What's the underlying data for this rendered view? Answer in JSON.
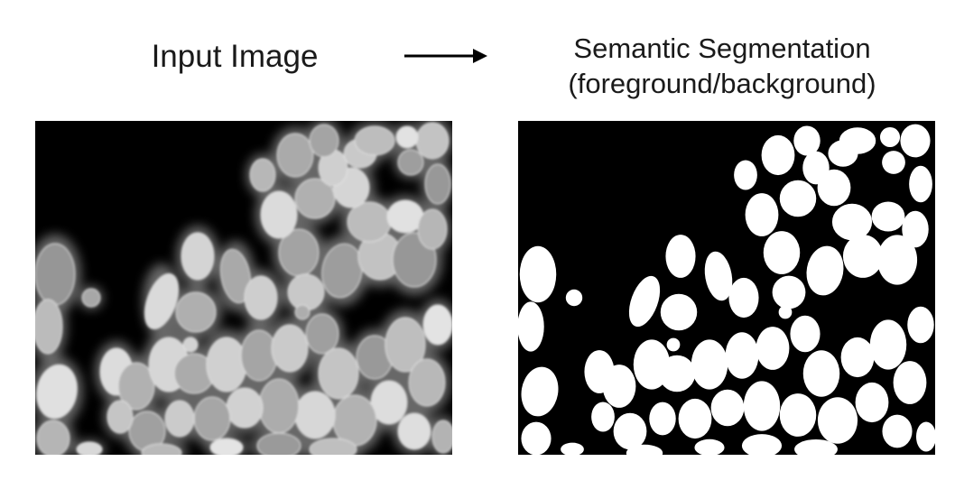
{
  "diagram": {
    "input_label": "Input Image",
    "output_label_line1": "Semantic Segmentation",
    "output_label_line2": "(foreground/background)",
    "arrow_icon": "right-arrow-icon",
    "input_panel": {
      "background": "#000000",
      "nuclei_fill": "#d8d8d8",
      "glow_color": "#bdbdbd"
    },
    "output_panel": {
      "background": "#000000",
      "foreground_color": "#ffffff"
    }
  }
}
